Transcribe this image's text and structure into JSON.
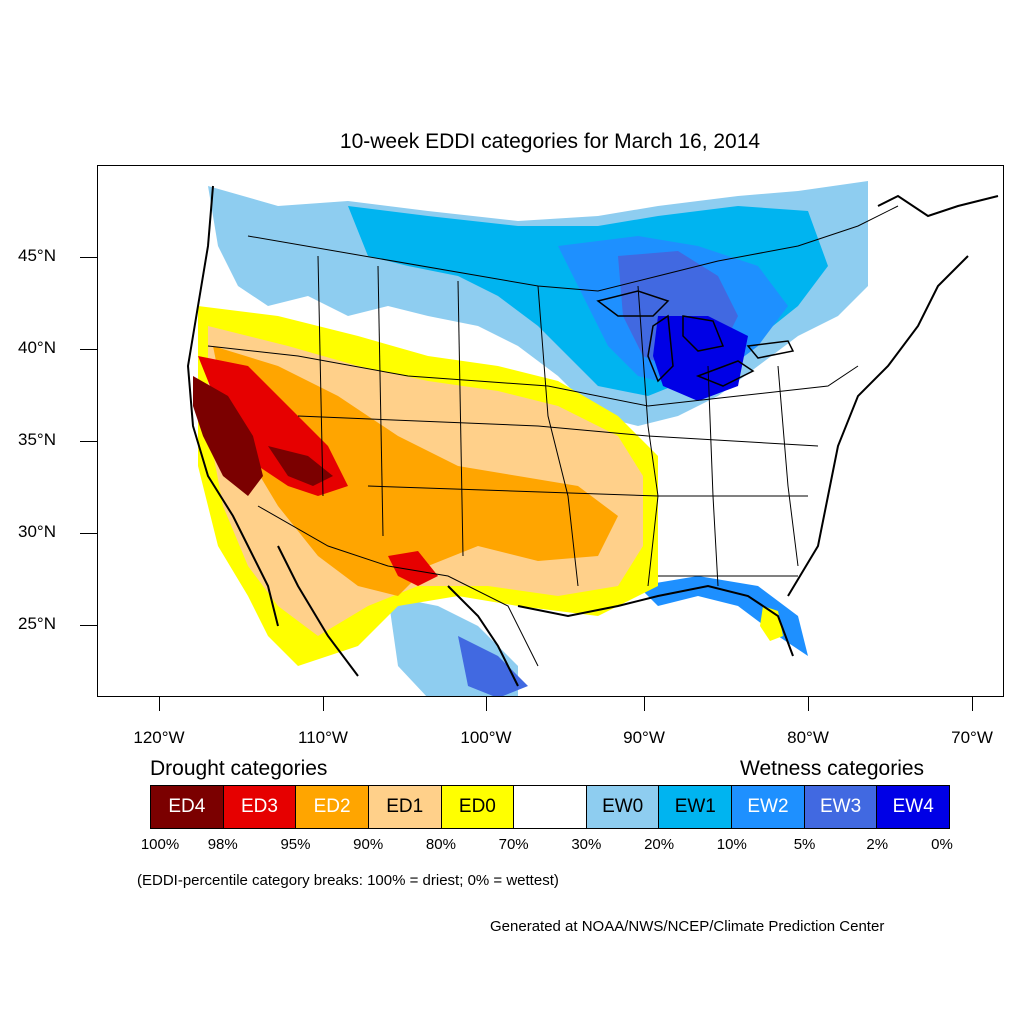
{
  "title": "10-week EDDI categories for March 16, 2014",
  "lat_labels": [
    "45°N",
    "40°N",
    "35°N",
    "30°N",
    "25°N"
  ],
  "lon_labels": [
    "120°W",
    "110°W",
    "100°W",
    "90°W",
    "80°W",
    "70°W"
  ],
  "legend": {
    "drought_heading": "Drought categories",
    "wetness_heading": "Wetness categories",
    "categories": [
      {
        "label": "ED4",
        "color": "#7b0000",
        "text_color": "#ffffff"
      },
      {
        "label": "ED3",
        "color": "#e60000",
        "text_color": "#ffffff"
      },
      {
        "label": "ED2",
        "color": "#ffa500",
        "text_color": "#ffffff"
      },
      {
        "label": "ED1",
        "color": "#ffd08a",
        "text_color": "#000000"
      },
      {
        "label": "ED0",
        "color": "#ffff00",
        "text_color": "#000000"
      },
      {
        "label": "",
        "color": "#ffffff",
        "text_color": "#000000"
      },
      {
        "label": "EW0",
        "color": "#8ecdf0",
        "text_color": "#000000"
      },
      {
        "label": "EW1",
        "color": "#00b4f0",
        "text_color": "#000000"
      },
      {
        "label": "EW2",
        "color": "#1e90ff",
        "text_color": "#ffffff"
      },
      {
        "label": "EW3",
        "color": "#4169e1",
        "text_color": "#ffffff"
      },
      {
        "label": "EW4",
        "color": "#0000e6",
        "text_color": "#ffffff"
      }
    ],
    "percent_breaks": [
      "100%",
      "98%",
      "95%",
      "90%",
      "80%",
      "70%",
      "30%",
      "20%",
      "10%",
      "5%",
      "2%",
      "0%"
    ]
  },
  "note": "(EDDI-percentile category breaks: 100% = driest; 0% = wettest)",
  "credit": "Generated at NOAA/NWS/NCEP/Climate Prediction Center"
}
